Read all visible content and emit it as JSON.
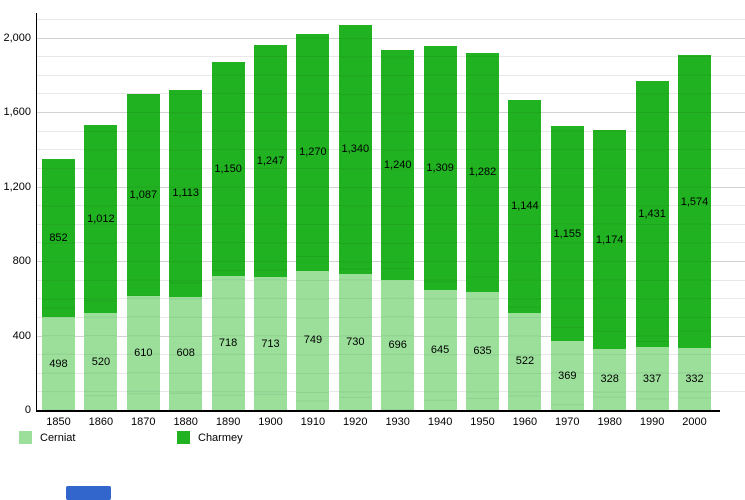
{
  "chart_data": {
    "type": "bar",
    "stacked": true,
    "title": "",
    "xlabel": "",
    "ylabel": "",
    "categories": [
      "1850",
      "1860",
      "1870",
      "1880",
      "1890",
      "1900",
      "1910",
      "1920",
      "1930",
      "1940",
      "1950",
      "1960",
      "1970",
      "1980",
      "1990",
      "2000"
    ],
    "series": [
      {
        "name": "Cerniat",
        "color": "#9bdf9b",
        "values": [
          498,
          520,
          610,
          608,
          718,
          713,
          749,
          730,
          696,
          645,
          635,
          522,
          369,
          328,
          337,
          332
        ]
      },
      {
        "name": "Charmey",
        "color": "#21b221",
        "values": [
          852,
          1012,
          1087,
          1113,
          1150,
          1247,
          1270,
          1340,
          1240,
          1309,
          1282,
          1144,
          1155,
          1174,
          1431,
          1574
        ]
      }
    ],
    "ylim": [
      0,
      2100
    ],
    "yticks": [
      0,
      400,
      800,
      1200,
      1600,
      2000
    ],
    "minor_grid_step": 100,
    "grid": true,
    "legend_position": "bottom"
  },
  "colors": {
    "axis": "#000000",
    "grid_minor": "#e8e8e8",
    "grid_major": "#d2d2d2",
    "blue_fragment": "#3366cc"
  }
}
